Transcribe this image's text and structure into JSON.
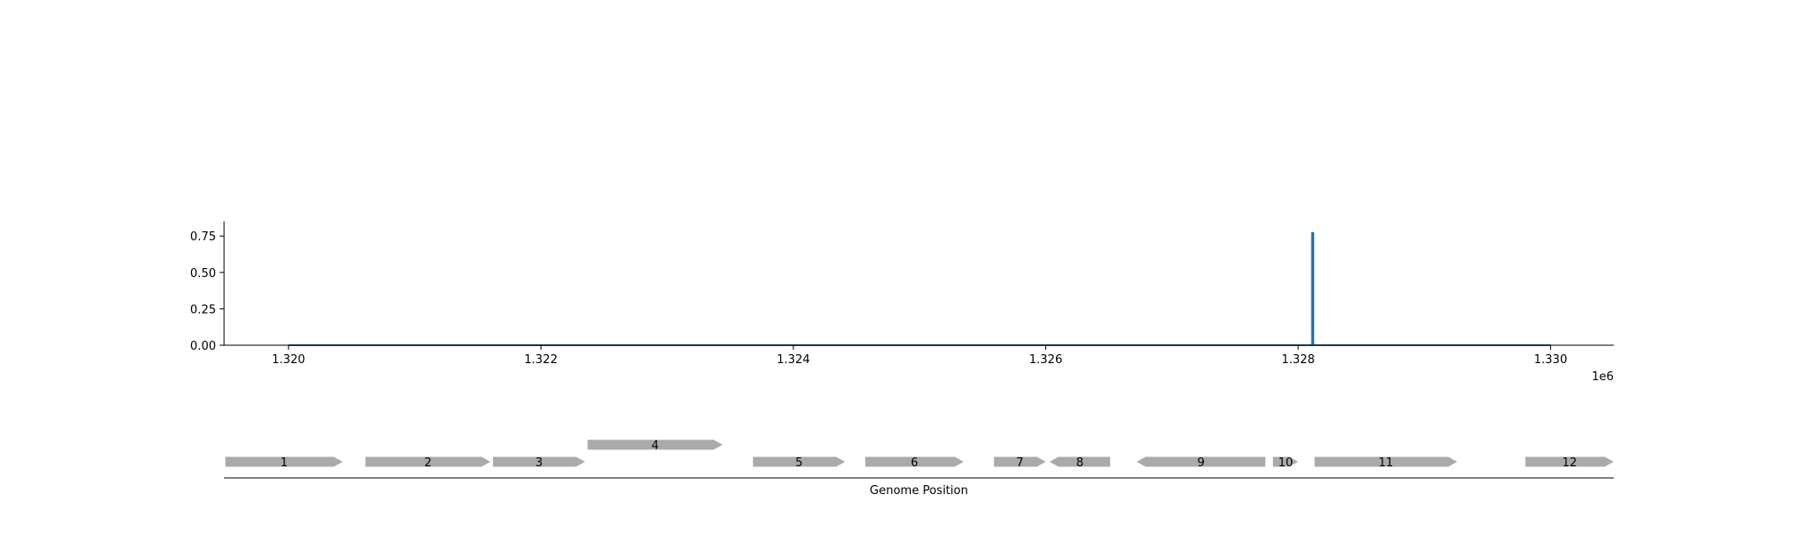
{
  "chart_data": [
    {
      "type": "line",
      "title": "",
      "xlabel": "",
      "ylabel": "",
      "x_offset_label": "1e6",
      "xlim": [
        1.31949,
        1.3305
      ],
      "ylim": [
        0,
        0.85
      ],
      "x_ticks": [
        1.32,
        1.322,
        1.324,
        1.326,
        1.328,
        1.33
      ],
      "x_tick_labels": [
        "1.320",
        "1.322",
        "1.324",
        "1.326",
        "1.328",
        "1.330"
      ],
      "y_ticks": [
        0.0,
        0.25,
        0.5,
        0.75
      ],
      "y_tick_labels": [
        "0.00",
        "0.25",
        "0.50",
        "0.75"
      ],
      "series": [
        {
          "color": "#1f77b4",
          "x": [
            1.32,
            1.32811,
            1.32811,
            1.32812,
            1.32812,
            1.33
          ],
          "y": [
            0.0,
            0.0,
            0.77,
            0.77,
            0.0,
            0.0
          ]
        }
      ],
      "grid": false
    },
    {
      "type": "gene-track",
      "xlabel": "Genome Position",
      "color": "#aaaaaa",
      "genes": [
        {
          "label": "1",
          "start": 1.3195,
          "end": 1.32043,
          "strand": "+",
          "row": 0
        },
        {
          "label": "2",
          "start": 1.32061,
          "end": 1.3216,
          "strand": "+",
          "row": 0
        },
        {
          "label": "3",
          "start": 1.32162,
          "end": 1.32235,
          "strand": "+",
          "row": 0
        },
        {
          "label": "4",
          "start": 1.32237,
          "end": 1.32344,
          "strand": "+",
          "row": 1
        },
        {
          "label": "5",
          "start": 1.32368,
          "end": 1.32441,
          "strand": "+",
          "row": 0
        },
        {
          "label": "6",
          "start": 1.32457,
          "end": 1.32535,
          "strand": "+",
          "row": 0
        },
        {
          "label": "7",
          "start": 1.32559,
          "end": 1.326,
          "strand": "+",
          "row": 0
        },
        {
          "label": "8",
          "start": 1.32603,
          "end": 1.32651,
          "strand": "-",
          "row": 0
        },
        {
          "label": "9",
          "start": 1.32672,
          "end": 1.32774,
          "strand": "-",
          "row": 0
        },
        {
          "label": "10",
          "start": 1.3278,
          "end": 1.328,
          "strand": "+",
          "row": 0
        },
        {
          "label": "11",
          "start": 1.32813,
          "end": 1.32926,
          "strand": "+",
          "row": 0
        },
        {
          "label": "12",
          "start": 1.3298,
          "end": 1.3305,
          "strand": "+",
          "row": 0
        }
      ]
    }
  ]
}
